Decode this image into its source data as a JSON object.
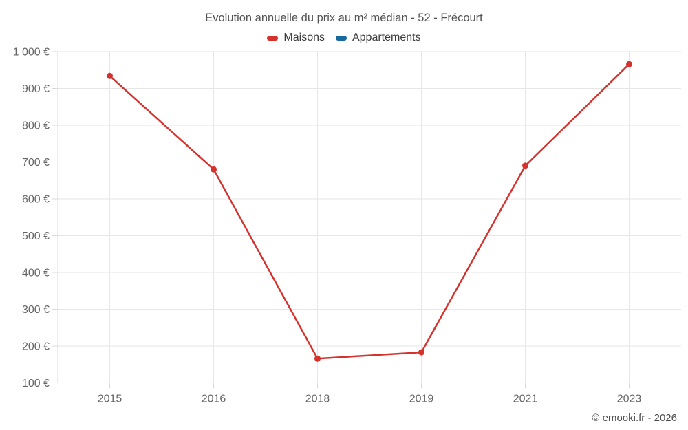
{
  "title": "Evolution annuelle du prix au m² médian - 52 - Frécourt",
  "footer": "© emooki.fr - 2026",
  "colors": {
    "maisons": "#d5312d",
    "appartements": "#17699e",
    "grid": "#e6e6e6",
    "axis": "#d9d9d9",
    "tick_label": "#666666",
    "title_text": "#545454",
    "legend_text": "#3c3c3c",
    "footer_text": "#4a4a4a",
    "background": "#ffffff"
  },
  "chart_data": {
    "type": "line",
    "categories": [
      "2015",
      "2016",
      "2018",
      "2019",
      "2021",
      "2023"
    ],
    "series": [
      {
        "name": "Maisons",
        "color": "#d5312d",
        "values": [
          934,
          680,
          166,
          183,
          690,
          966
        ]
      },
      {
        "name": "Appartements",
        "color": "#17699e",
        "values": []
      }
    ],
    "title": "Evolution annuelle du prix au m² médian - 52 - Frécourt",
    "xlabel": "",
    "ylabel": "",
    "ylim": [
      100,
      1000
    ],
    "ytick_step": 100,
    "ytick_suffix": " €",
    "grid": true,
    "legend_position": "top",
    "marker_radius": 4.5,
    "line_width": 2.5
  }
}
